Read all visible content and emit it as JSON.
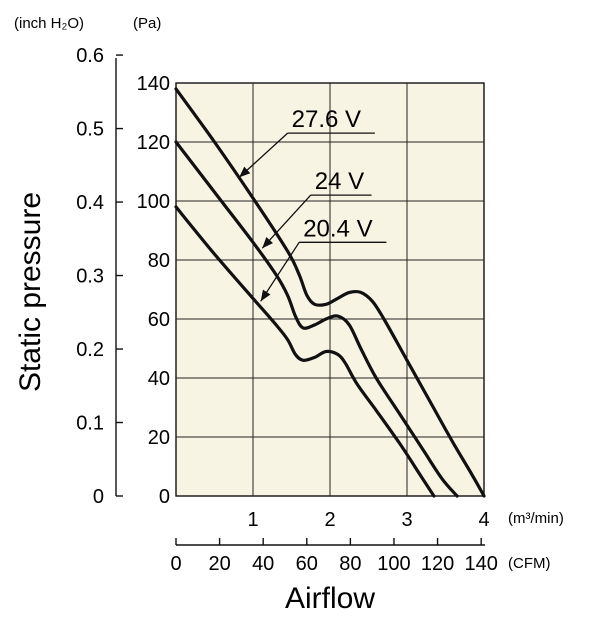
{
  "chart_data": {
    "type": "line",
    "xlabel": "Airflow",
    "ylabel": "Static pressure",
    "x_units": {
      "primary": "(m³/min)",
      "secondary": "(CFM)"
    },
    "y_units": {
      "primary": "(Pa)",
      "secondary": "(inch H₂O)"
    },
    "xlim": [
      0,
      4
    ],
    "ylim": [
      0,
      140
    ],
    "x_ticks": [
      {
        "v": 1,
        "label": "1"
      },
      {
        "v": 2,
        "label": "2"
      },
      {
        "v": 3,
        "label": "3"
      },
      {
        "v": 4,
        "label": "4"
      }
    ],
    "y_ticks": [
      {
        "v": 0,
        "label": "0"
      },
      {
        "v": 20,
        "label": "20"
      },
      {
        "v": 40,
        "label": "40"
      },
      {
        "v": 60,
        "label": "60"
      },
      {
        "v": 80,
        "label": "80"
      },
      {
        "v": 100,
        "label": "100"
      },
      {
        "v": 120,
        "label": "120"
      },
      {
        "v": 140,
        "label": "140"
      }
    ],
    "secondary_x_ticks": [
      {
        "v": 0,
        "label": "0"
      },
      {
        "v": 20,
        "label": "20"
      },
      {
        "v": 40,
        "label": "40"
      },
      {
        "v": 60,
        "label": "60"
      },
      {
        "v": 80,
        "label": "80"
      },
      {
        "v": 100,
        "label": "100"
      },
      {
        "v": 120,
        "label": "120"
      },
      {
        "v": 140,
        "label": "140"
      }
    ],
    "secondary_xlim": [
      0,
      141.3
    ],
    "secondary_y_ticks": [
      {
        "v": 0,
        "label": "0"
      },
      {
        "v": 0.1,
        "label": "0.1"
      },
      {
        "v": 0.2,
        "label": "0.2"
      },
      {
        "v": 0.3,
        "label": "0.3"
      },
      {
        "v": 0.4,
        "label": "0.4"
      },
      {
        "v": 0.5,
        "label": "0.5"
      },
      {
        "v": 0.6,
        "label": "0.6"
      }
    ],
    "secondary_ylim": [
      0,
      0.562
    ],
    "grid": true,
    "background": "#f8f4e3",
    "line_color": "#111111",
    "series": [
      {
        "name": "27.6 V",
        "x": [
          0,
          0.5,
          1.0,
          1.45,
          1.6,
          1.7,
          1.8,
          1.95,
          2.1,
          2.25,
          2.4,
          2.55,
          2.7,
          3.0,
          3.3,
          3.6,
          3.85,
          4.0
        ],
        "y": [
          138,
          120,
          101,
          83,
          75,
          68,
          65,
          65,
          67,
          69,
          69,
          66,
          60,
          46,
          32,
          18,
          7,
          0
        ]
      },
      {
        "name": "24 V",
        "x": [
          0,
          0.5,
          1.0,
          1.3,
          1.45,
          1.55,
          1.65,
          1.8,
          1.95,
          2.1,
          2.25,
          2.4,
          2.6,
          2.9,
          3.2,
          3.45,
          3.65
        ],
        "y": [
          120,
          103,
          86,
          75,
          68,
          61,
          57,
          58,
          60,
          61,
          58,
          50,
          40,
          28,
          16,
          6,
          0
        ]
      },
      {
        "name": "20.4 V",
        "x": [
          0,
          0.5,
          1.0,
          1.3,
          1.45,
          1.55,
          1.65,
          1.8,
          1.95,
          2.1,
          2.2,
          2.35,
          2.6,
          2.9,
          3.15,
          3.35
        ],
        "y": [
          98,
          82,
          67,
          58,
          53,
          48,
          46,
          47,
          49,
          48,
          45,
          38,
          29,
          18,
          8,
          0
        ]
      }
    ],
    "annotations": [
      {
        "series": "27.6 V",
        "text": "27.6 V",
        "arrow_to": [
          0.82,
          108
        ],
        "label_at": [
          1.45,
          123
        ]
      },
      {
        "series": "24 V",
        "text": "24 V",
        "arrow_to": [
          1.12,
          84
        ],
        "label_at": [
          1.75,
          102
        ]
      },
      {
        "series": "20.4 V",
        "text": "20.4 V",
        "arrow_to": [
          1.1,
          66
        ],
        "label_at": [
          1.6,
          86
        ]
      }
    ]
  }
}
